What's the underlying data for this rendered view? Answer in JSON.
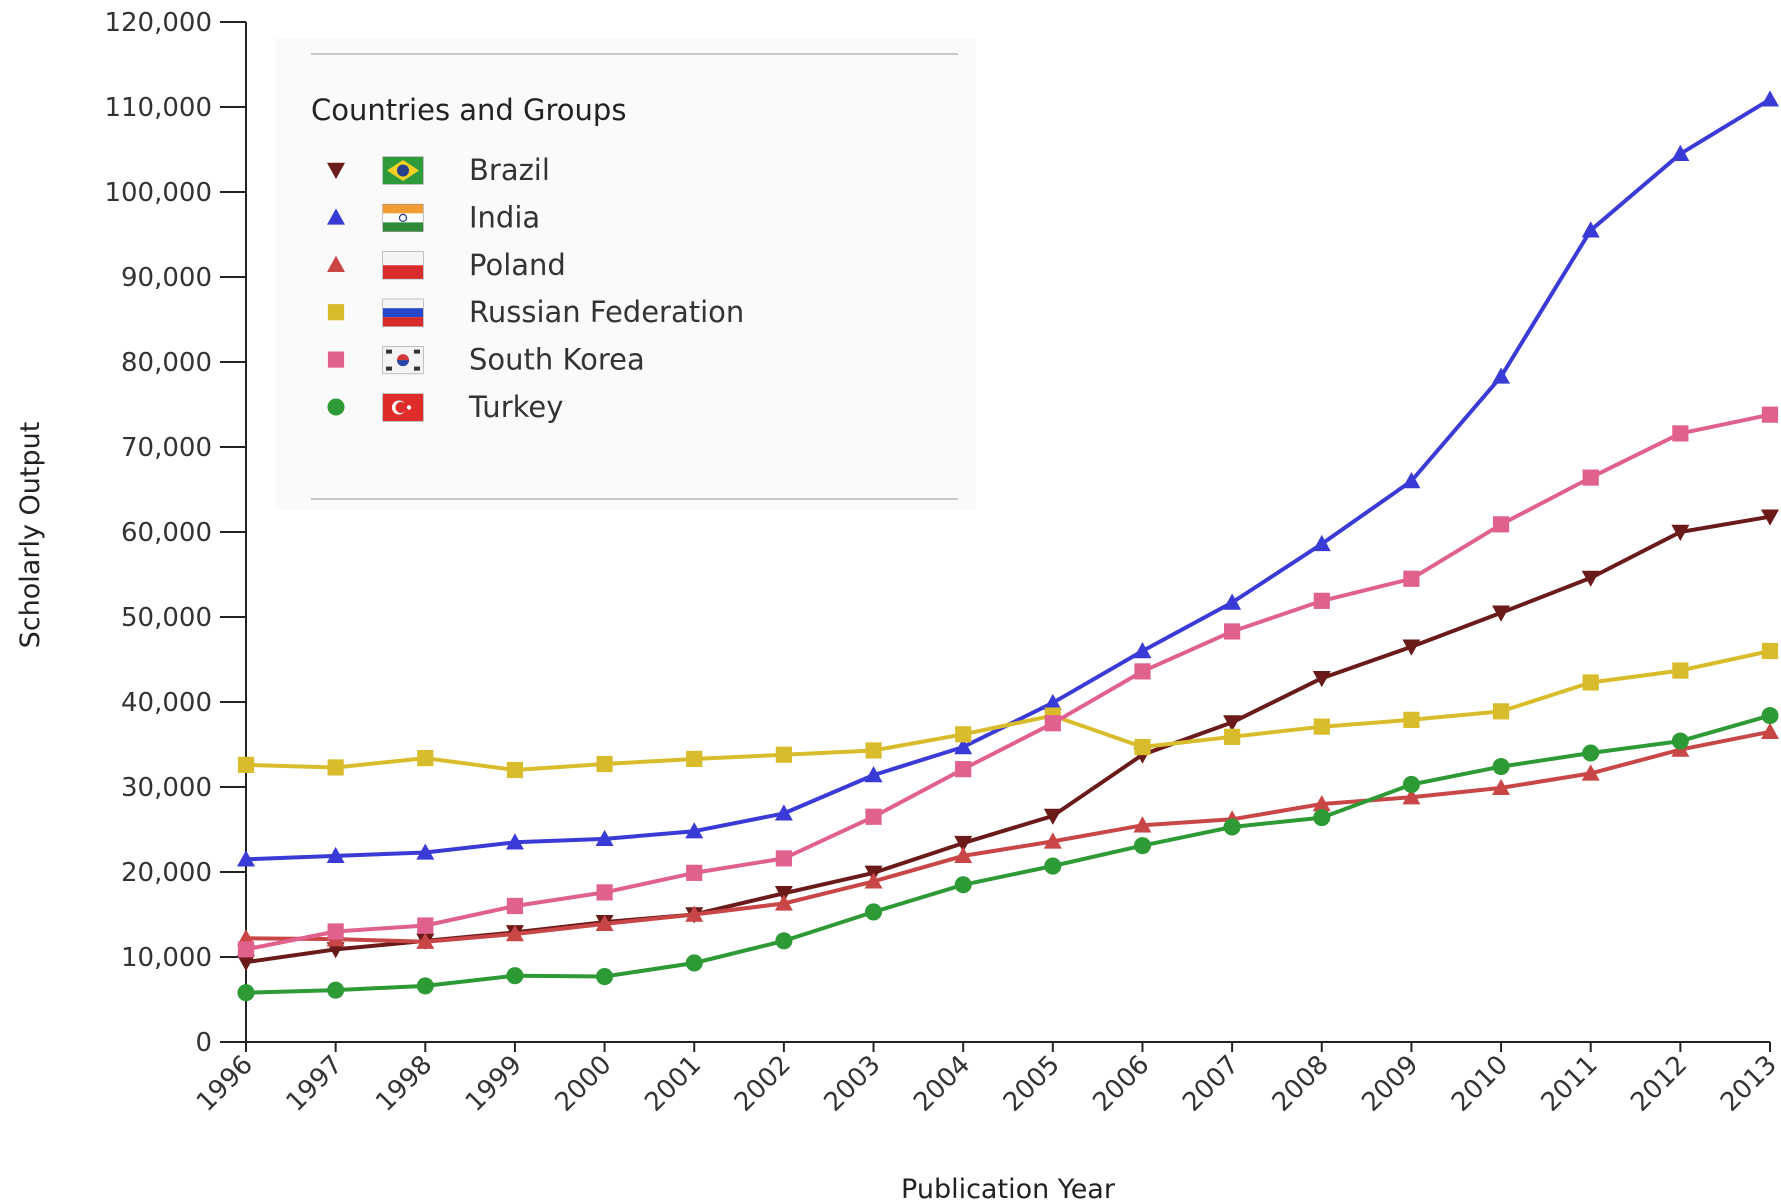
{
  "chart_data": {
    "type": "line",
    "title": "",
    "xlabel": "Publication Year",
    "ylabel": "Scholarly Output",
    "x": [
      1996,
      1997,
      1998,
      1999,
      2000,
      2001,
      2002,
      2003,
      2004,
      2005,
      2006,
      2007,
      2008,
      2009,
      2010,
      2011,
      2012,
      2013
    ],
    "x_tick_labels": [
      "1996",
      "1997",
      "1998",
      "1999",
      "2000",
      "2001",
      "2002",
      "2003",
      "2004",
      "2005",
      "2006",
      "2007",
      "2008",
      "2009",
      "2010",
      "2011",
      "2012",
      "2013"
    ],
    "ylim": [
      0,
      120000
    ],
    "y_ticks": [
      0,
      10000,
      20000,
      30000,
      40000,
      50000,
      60000,
      70000,
      80000,
      90000,
      100000,
      110000,
      120000
    ],
    "y_tick_labels": [
      "0",
      "10,000",
      "20,000",
      "30,000",
      "40,000",
      "50,000",
      "60,000",
      "70,000",
      "80,000",
      "90,000",
      "100,000",
      "110,000",
      "120,000"
    ],
    "grid": false,
    "legend": {
      "title": "Countries and Groups",
      "position": "top-left"
    },
    "series": [
      {
        "name": "Brazil",
        "color": "#6b1a1a",
        "marker": "triangle-down",
        "flag": "brazil-flag",
        "values": [
          9400,
          10900,
          11900,
          12900,
          14100,
          15000,
          17500,
          19900,
          23400,
          26600,
          33800,
          37600,
          42800,
          46500,
          50500,
          54600,
          60000,
          61800
        ]
      },
      {
        "name": "India",
        "color": "#3a3ad6",
        "marker": "triangle-up",
        "flag": "india-flag",
        "values": [
          21500,
          21900,
          22300,
          23500,
          23900,
          24800,
          26900,
          31400,
          34700,
          39900,
          46000,
          51700,
          58600,
          66000,
          78300,
          95500,
          104500,
          110900
        ]
      },
      {
        "name": "Poland",
        "color": "#c94646",
        "marker": "triangle-up",
        "flag": "poland-flag",
        "values": [
          12200,
          12100,
          11800,
          12700,
          13900,
          15000,
          16300,
          18900,
          21900,
          23600,
          25500,
          26200,
          28000,
          28800,
          29900,
          31600,
          34400,
          36500
        ]
      },
      {
        "name": "Russian Federation",
        "color": "#d9bc2b",
        "marker": "square",
        "flag": "russia-flag",
        "values": [
          32600,
          32300,
          33400,
          32000,
          32700,
          33300,
          33800,
          34300,
          36200,
          38400,
          34700,
          35900,
          37100,
          37900,
          38900,
          42300,
          43700,
          46000
        ]
      },
      {
        "name": "South Korea",
        "color": "#e0608e",
        "marker": "square",
        "flag": "south-korea-flag",
        "values": [
          10900,
          13000,
          13700,
          16000,
          17600,
          19900,
          21600,
          26500,
          32100,
          37500,
          43600,
          48300,
          51900,
          54500,
          60900,
          66400,
          71600,
          73800
        ]
      },
      {
        "name": "Turkey",
        "color": "#2e9a36",
        "marker": "circle",
        "flag": "turkey-flag",
        "values": [
          5800,
          6100,
          6600,
          7800,
          7700,
          9300,
          11900,
          15300,
          18500,
          20700,
          23100,
          25300,
          26400,
          30300,
          32400,
          34000,
          35400,
          38400
        ]
      }
    ]
  }
}
